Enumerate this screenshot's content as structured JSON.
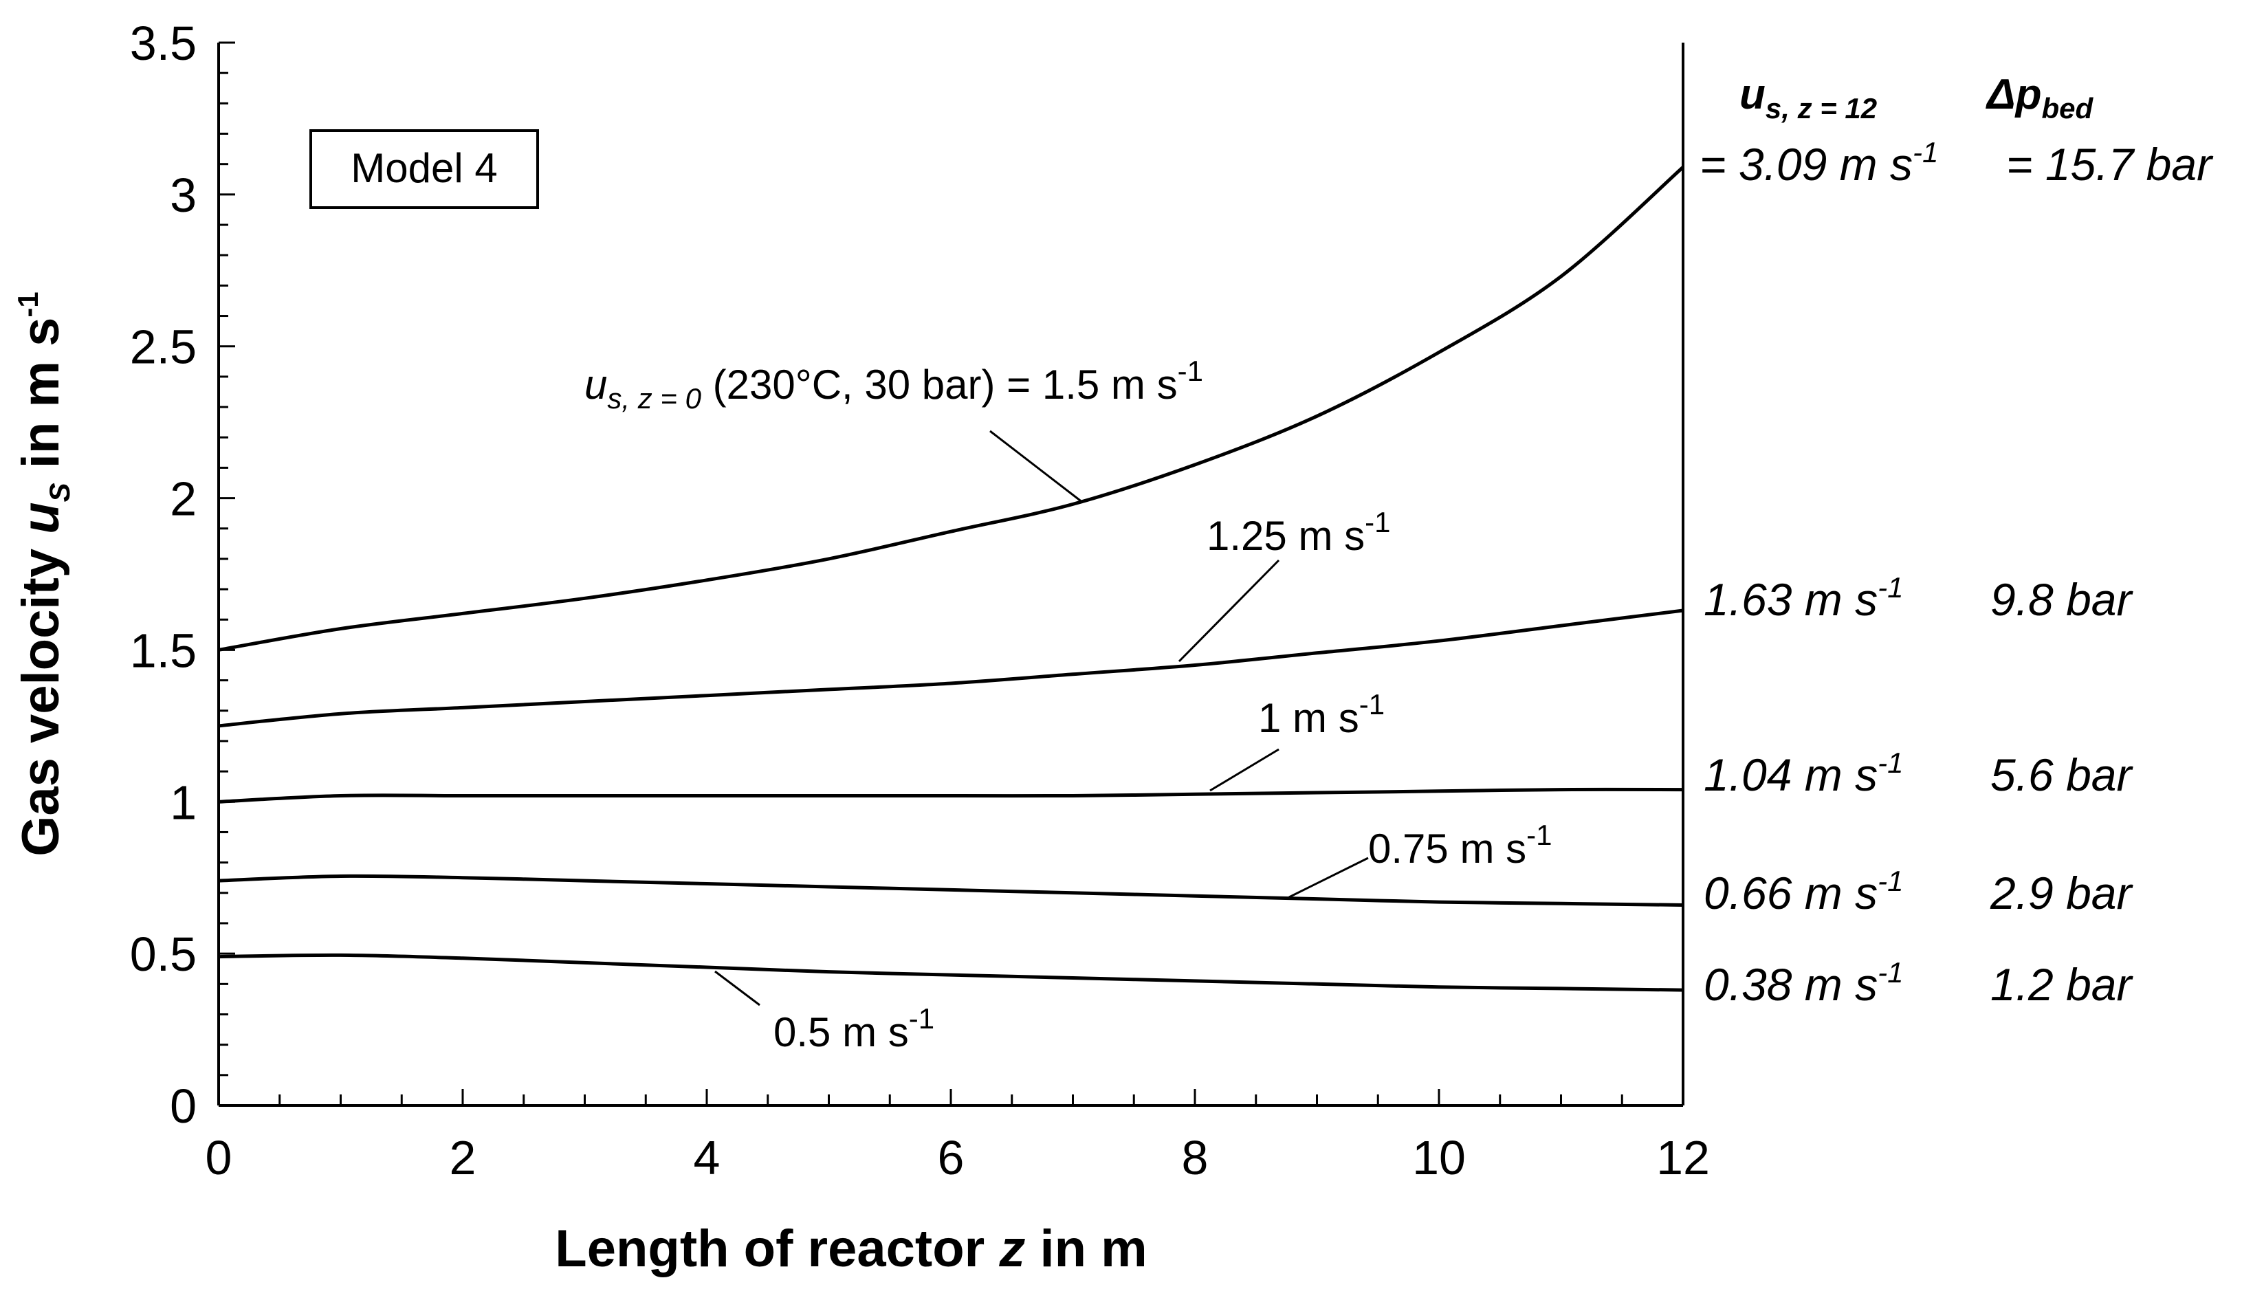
{
  "chart_data": {
    "type": "line",
    "xlabel": "Length of reactor z in m",
    "ylabel": "Gas velocity uS in m s-1",
    "xlim": [
      0,
      12
    ],
    "ylim": [
      0,
      3.5
    ],
    "x_ticks": [
      "0",
      "2",
      "4",
      "6",
      "8",
      "10",
      "12"
    ],
    "y_ticks": [
      "0",
      "0.5",
      "1",
      "1.5",
      "2",
      "2.5",
      "3",
      "3.5"
    ],
    "model_box": "Model 4",
    "x": [
      0,
      1,
      2,
      3,
      4,
      5,
      6,
      7,
      8,
      9,
      10,
      11,
      12
    ],
    "series": [
      {
        "values": [
          1.5,
          1.57,
          1.62,
          1.67,
          1.73,
          1.8,
          1.89,
          1.98,
          2.11,
          2.27,
          2.48,
          2.73,
          3.09
        ]
      },
      {
        "values": [
          1.25,
          1.29,
          1.31,
          1.33,
          1.35,
          1.37,
          1.39,
          1.42,
          1.45,
          1.49,
          1.53,
          1.58,
          1.63
        ]
      },
      {
        "values": [
          1.0,
          1.02,
          1.02,
          1.02,
          1.02,
          1.02,
          1.02,
          1.02,
          1.025,
          1.03,
          1.035,
          1.04,
          1.04
        ]
      },
      {
        "values": [
          0.74,
          0.755,
          0.75,
          0.74,
          0.73,
          0.72,
          0.71,
          0.7,
          0.69,
          0.68,
          0.67,
          0.665,
          0.66
        ]
      },
      {
        "values": [
          0.49,
          0.495,
          0.485,
          0.47,
          0.455,
          0.44,
          0.43,
          0.42,
          0.41,
          0.4,
          0.39,
          0.385,
          0.38
        ]
      }
    ],
    "curve_labels": [
      {
        "base": "u",
        "sub": "s, z = 0",
        "text": " (230°C, 30 bar) = 1.5 m s",
        "sup": "-1"
      },
      {
        "text": "1.25 m s",
        "sup": "-1"
      },
      {
        "text": "1 m s",
        "sup": "-1"
      },
      {
        "text": "0.75 m s",
        "sup": "-1"
      },
      {
        "text": "0.5 m s",
        "sup": "-1"
      }
    ],
    "right_headers": {
      "velocity": {
        "base": "u",
        "sub": "s, z = 12"
      },
      "pressure": {
        "base": "Δp",
        "sub": "bed"
      }
    },
    "right_values": [
      {
        "velocity": "= 3.09 m s",
        "pressure": "= 15.7 bar"
      },
      {
        "velocity": "1.63 m s",
        "pressure": "9.8 bar"
      },
      {
        "velocity": "1.04 m s",
        "pressure": "5.6 bar"
      },
      {
        "velocity": "0.66 m s",
        "pressure": "2.9 bar"
      },
      {
        "velocity": "0.38 m s",
        "pressure": "1.2 bar"
      }
    ],
    "unit_sup": "-1"
  }
}
